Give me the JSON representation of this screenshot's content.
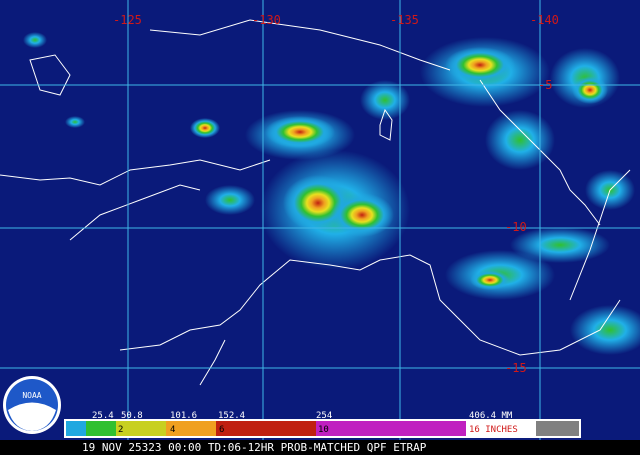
{
  "map": {
    "longitude_labels": [
      "-125",
      "-130",
      "-135",
      "-140"
    ],
    "latitude_labels": [
      "-5",
      "-10",
      "-15"
    ],
    "legend": {
      "mm_labels": [
        "25.4",
        "50.8",
        "101.6",
        "152.4",
        "254",
        "406.4 MM"
      ],
      "inch_labels": [
        "2",
        "4",
        "6",
        "10",
        "16 INCHES"
      ]
    },
    "logo": "NOAA",
    "footer": "19 NOV 25323 00:00 TD:06-12HR PROB-MATCHED QPF ETRAP"
  }
}
